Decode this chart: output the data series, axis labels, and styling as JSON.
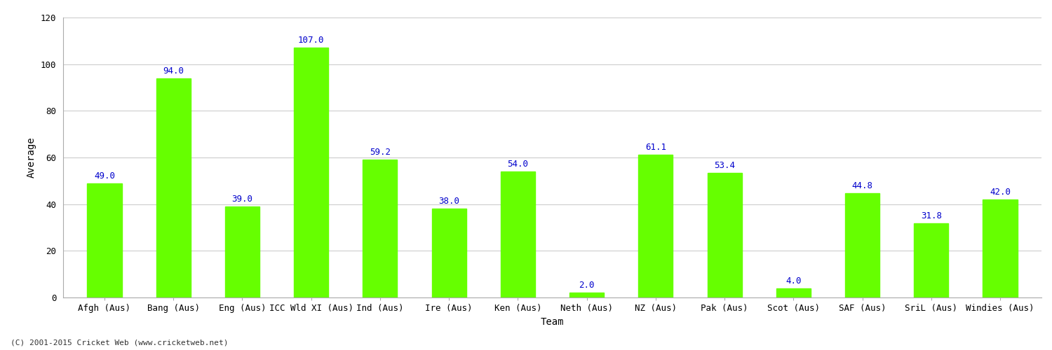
{
  "categories": [
    "Afgh (Aus)",
    "Bang (Aus)",
    "Eng (Aus)",
    "ICC Wld XI (Aus)",
    "Ind (Aus)",
    "Ire (Aus)",
    "Ken (Aus)",
    "Neth (Aus)",
    "NZ (Aus)",
    "Pak (Aus)",
    "Scot (Aus)",
    "SAF (Aus)",
    "SriL (Aus)",
    "Windies (Aus)"
  ],
  "values": [
    49.0,
    94.0,
    39.0,
    107.0,
    59.2,
    38.0,
    54.0,
    2.0,
    61.1,
    53.4,
    4.0,
    44.8,
    31.8,
    42.0
  ],
  "bar_color": "#66ff00",
  "bar_edge_color": "#66ff00",
  "label_color": "#0000cc",
  "xlabel": "Team",
  "ylabel": "Average",
  "ylim": [
    0,
    120
  ],
  "yticks": [
    0,
    20,
    40,
    60,
    80,
    100,
    120
  ],
  "grid_color": "#cccccc",
  "background_color": "#ffffff",
  "label_fontsize": 9,
  "axis_label_fontsize": 10,
  "tick_fontsize": 9,
  "footer_text": "(C) 2001-2015 Cricket Web (www.cricketweb.net)"
}
